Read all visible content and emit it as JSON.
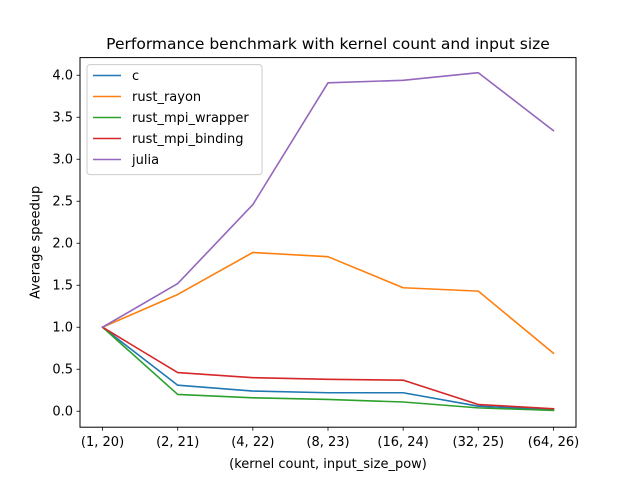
{
  "chart_data": {
    "type": "line",
    "title": "Performance benchmark with kernel count and input size",
    "xlabel": "(kernel count, input_size_pow)",
    "ylabel": "Average speedup",
    "categories": [
      "(1, 20)",
      "(2, 21)",
      "(4, 22)",
      "(8, 23)",
      "(16, 24)",
      "(32, 25)",
      "(64, 26)"
    ],
    "ylim": [
      -0.19,
      4.21
    ],
    "yticks": [
      "0.0",
      "0.5",
      "1.0",
      "1.5",
      "2.0",
      "2.5",
      "3.0",
      "3.5",
      "4.0"
    ],
    "grid": false,
    "legend_position": "top-left",
    "series": [
      {
        "name": "c",
        "color": "#1f77b4",
        "values": [
          1.0,
          0.31,
          0.24,
          0.22,
          0.22,
          0.06,
          0.02
        ]
      },
      {
        "name": "rust_rayon",
        "color": "#ff7f0e",
        "values": [
          1.0,
          1.39,
          1.89,
          1.84,
          1.47,
          1.43,
          0.69
        ]
      },
      {
        "name": "rust_mpi_wrapper",
        "color": "#2ca02c",
        "values": [
          1.0,
          0.2,
          0.16,
          0.14,
          0.11,
          0.04,
          0.01
        ]
      },
      {
        "name": "rust_mpi_binding",
        "color": "#d62728",
        "values": [
          1.0,
          0.46,
          0.4,
          0.38,
          0.37,
          0.08,
          0.03
        ]
      },
      {
        "name": "julia",
        "color": "#9467bd",
        "values": [
          1.0,
          1.52,
          2.46,
          3.91,
          3.94,
          4.03,
          3.34
        ]
      }
    ]
  }
}
